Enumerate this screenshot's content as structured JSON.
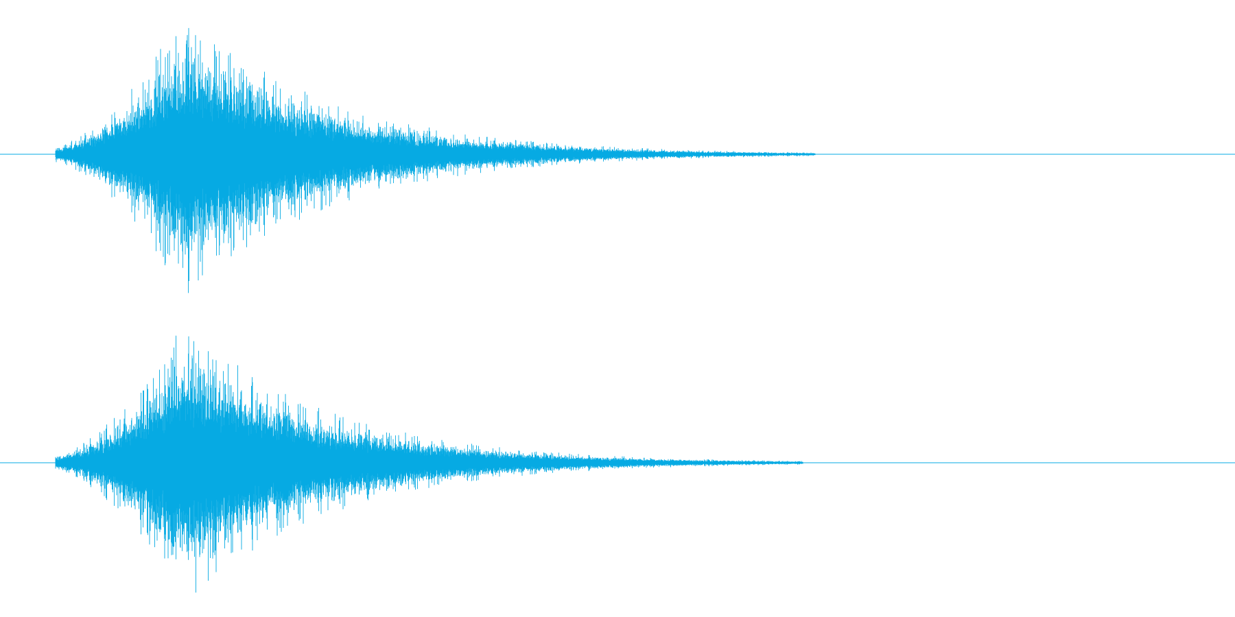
{
  "waveform": {
    "color": "#06aae3",
    "background": "#ffffff",
    "channels": [
      {
        "name": "",
        "onset": 0.045,
        "peak_time": 0.15,
        "decay_end": 0.66,
        "peak_amplitude": 0.98,
        "seed": 11
      },
      {
        "name": "",
        "onset": 0.045,
        "peak_time": 0.15,
        "decay_end": 0.65,
        "peak_amplitude": 0.97,
        "seed": 29
      }
    ]
  }
}
